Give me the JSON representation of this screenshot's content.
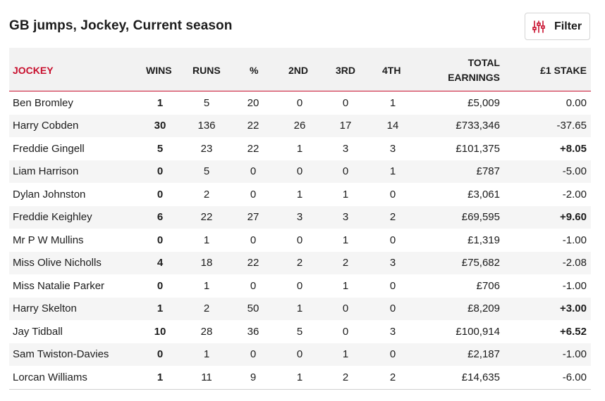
{
  "header": {
    "title": "GB jumps, Jockey, Current season",
    "filter_label": "Filter",
    "filter_icon": "sliders-icon",
    "accent": "#c8102e"
  },
  "table": {
    "columns": {
      "jockey": "JOCKEY",
      "wins": "WINS",
      "runs": "RUNS",
      "pct": "%",
      "second": "2ND",
      "third": "3RD",
      "fourth": "4TH",
      "earnings_line1": "TOTAL",
      "earnings_line2": "EARNINGS",
      "stake": "£1 STAKE"
    },
    "rows": [
      {
        "name": "Ben Bromley",
        "wins": "1",
        "runs": "5",
        "pct": "20",
        "second": "0",
        "third": "0",
        "fourth": "1",
        "earnings": "£5,009",
        "stake": "0.00",
        "stake_positive": false
      },
      {
        "name": "Harry Cobden",
        "wins": "30",
        "runs": "136",
        "pct": "22",
        "second": "26",
        "third": "17",
        "fourth": "14",
        "earnings": "£733,346",
        "stake": "-37.65",
        "stake_positive": false
      },
      {
        "name": "Freddie Gingell",
        "wins": "5",
        "runs": "23",
        "pct": "22",
        "second": "1",
        "third": "3",
        "fourth": "3",
        "earnings": "£101,375",
        "stake": "+8.05",
        "stake_positive": true
      },
      {
        "name": "Liam Harrison",
        "wins": "0",
        "runs": "5",
        "pct": "0",
        "second": "0",
        "third": "0",
        "fourth": "1",
        "earnings": "£787",
        "stake": "-5.00",
        "stake_positive": false
      },
      {
        "name": "Dylan Johnston",
        "wins": "0",
        "runs": "2",
        "pct": "0",
        "second": "1",
        "third": "1",
        "fourth": "0",
        "earnings": "£3,061",
        "stake": "-2.00",
        "stake_positive": false
      },
      {
        "name": "Freddie Keighley",
        "wins": "6",
        "runs": "22",
        "pct": "27",
        "second": "3",
        "third": "3",
        "fourth": "2",
        "earnings": "£69,595",
        "stake": "+9.60",
        "stake_positive": true
      },
      {
        "name": "Mr P W Mullins",
        "wins": "0",
        "runs": "1",
        "pct": "0",
        "second": "0",
        "third": "1",
        "fourth": "0",
        "earnings": "£1,319",
        "stake": "-1.00",
        "stake_positive": false
      },
      {
        "name": "Miss Olive Nicholls",
        "wins": "4",
        "runs": "18",
        "pct": "22",
        "second": "2",
        "third": "2",
        "fourth": "3",
        "earnings": "£75,682",
        "stake": "-2.08",
        "stake_positive": false
      },
      {
        "name": "Miss Natalie Parker",
        "wins": "0",
        "runs": "1",
        "pct": "0",
        "second": "0",
        "third": "1",
        "fourth": "0",
        "earnings": "£706",
        "stake": "-1.00",
        "stake_positive": false
      },
      {
        "name": "Harry Skelton",
        "wins": "1",
        "runs": "2",
        "pct": "50",
        "second": "1",
        "third": "0",
        "fourth": "0",
        "earnings": "£8,209",
        "stake": "+3.00",
        "stake_positive": true
      },
      {
        "name": "Jay Tidball",
        "wins": "10",
        "runs": "28",
        "pct": "36",
        "second": "5",
        "third": "0",
        "fourth": "3",
        "earnings": "£100,914",
        "stake": "+6.52",
        "stake_positive": true
      },
      {
        "name": "Sam Twiston-Davies",
        "wins": "0",
        "runs": "1",
        "pct": "0",
        "second": "0",
        "third": "1",
        "fourth": "0",
        "earnings": "£2,187",
        "stake": "-1.00",
        "stake_positive": false
      },
      {
        "name": "Lorcan Williams",
        "wins": "1",
        "runs": "11",
        "pct": "9",
        "second": "1",
        "third": "2",
        "fourth": "2",
        "earnings": "£14,635",
        "stake": "-6.00",
        "stake_positive": false
      }
    ]
  }
}
